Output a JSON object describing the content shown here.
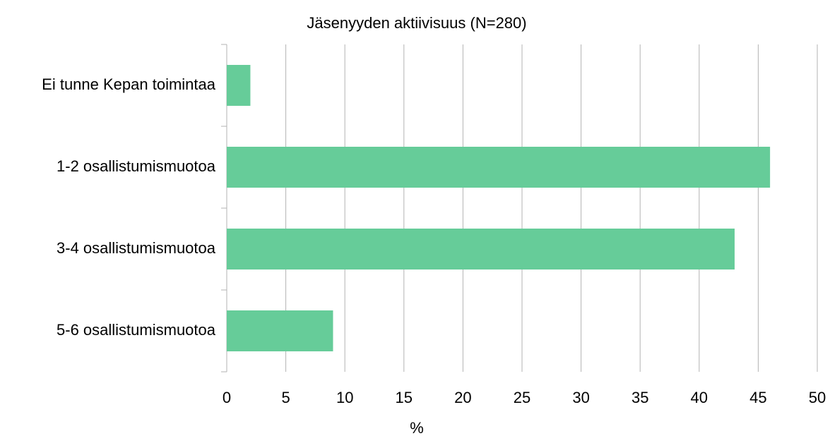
{
  "chart_data": {
    "type": "bar",
    "horizontal": true,
    "title": "Jäsenyyden aktiivisuus (N=280)",
    "x_label": "%",
    "categories": [
      "Ei tunne Kepan toimintaa",
      "1-2 osallistumismuotoa",
      "3-4 osallistumismuotoa",
      "5-6 osallistumismuotoa"
    ],
    "values": [
      2,
      46,
      43,
      9
    ],
    "color": "#66cc99",
    "xlim": [
      0,
      50
    ],
    "xticks": [
      0,
      5,
      10,
      15,
      20,
      25,
      30,
      35,
      40,
      45,
      50
    ],
    "grid": true
  }
}
